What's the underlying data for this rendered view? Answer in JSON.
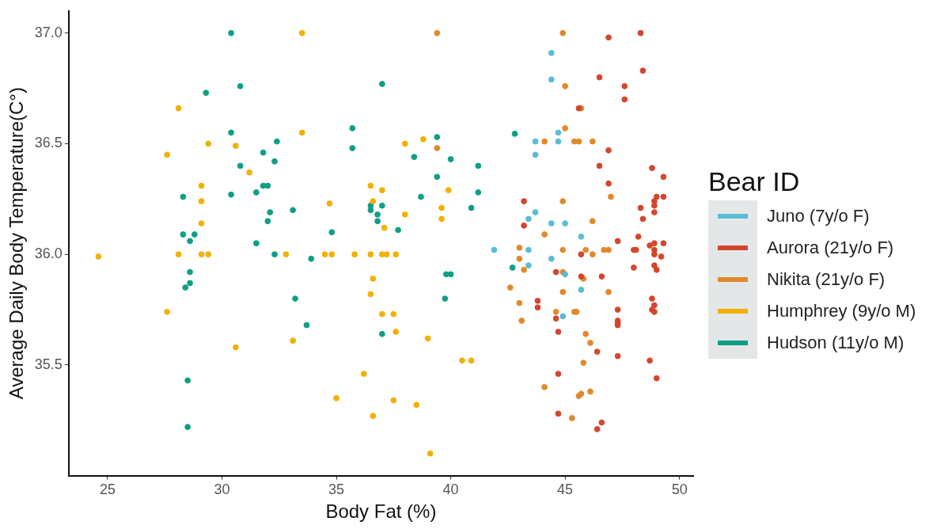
{
  "chart_data": {
    "type": "scatter",
    "xlabel": "Body Fat (%)",
    "ylabel": "Average Daily Body Temperature(C°)",
    "legend_title": "Bear ID",
    "legend": "right",
    "grid": false,
    "marker": "circle",
    "xlim": [
      23.3,
      50.6
    ],
    "xticks": [
      25,
      30,
      35,
      40,
      45,
      50
    ],
    "ylim": [
      35.0,
      37.1
    ],
    "yticks": [
      {
        "value": 35.5,
        "label": "35.5"
      },
      {
        "value": 36,
        "label": "36.0"
      },
      {
        "value": 36.5,
        "label": "36.5"
      },
      {
        "value": 37,
        "label": "37.0"
      }
    ],
    "series": [
      {
        "name": "Juno (7y/o F)",
        "color": "#5bbcd6",
        "x": [
          44.4,
          44.4,
          44.7,
          43.7,
          44.7,
          43.7,
          43.7,
          43.4,
          44.4,
          45.0,
          45.7,
          41.9,
          43.4,
          44.4,
          43.4,
          45.0,
          45.7,
          44.9
        ],
        "values": [
          36.91,
          36.79,
          36.55,
          36.51,
          36.51,
          36.45,
          36.19,
          36.16,
          36.14,
          36.14,
          36.08,
          36.02,
          36.02,
          35.98,
          35.95,
          35.91,
          35.84,
          35.72
        ]
      },
      {
        "name": "Aurora (21y/o F)",
        "color": "#d4462e",
        "x": [
          45.6,
          43.2,
          43.2,
          44.6,
          43.8,
          43.8,
          44.6,
          44.7,
          44.7,
          44.7,
          46.9,
          48.3,
          48.4,
          46.5,
          47.6,
          47.6,
          46.9,
          46.5,
          46.9,
          48.8,
          49.3,
          48.3,
          48.4,
          48.9,
          48.9,
          49.0,
          49.3,
          48.9,
          48.2,
          47.3,
          48.0,
          48.1,
          48.7,
          48.9,
          49.3,
          48.9,
          48.9,
          49.2,
          48.0,
          48.9,
          49.0,
          45.7,
          45.7,
          46.6,
          48.8,
          48.9,
          48.8,
          48.9,
          47.3,
          47.3,
          47.3,
          47.3,
          46.4,
          47.3,
          48.7,
          49.0,
          46.6,
          46.4
        ],
        "values": [
          36.66,
          36.24,
          36.13,
          35.92,
          35.79,
          35.76,
          35.71,
          35.65,
          35.46,
          35.28,
          36.98,
          37.0,
          36.83,
          36.8,
          36.76,
          36.7,
          36.47,
          36.4,
          36.32,
          36.39,
          36.35,
          36.21,
          36.16,
          36.24,
          36.22,
          36.26,
          36.26,
          36.19,
          36.08,
          36.06,
          36.02,
          36.02,
          36.04,
          36.05,
          36.05,
          36.02,
          36.0,
          35.99,
          35.94,
          35.95,
          35.93,
          36.0,
          35.9,
          35.9,
          35.8,
          35.77,
          35.75,
          35.74,
          35.75,
          35.7,
          35.69,
          35.68,
          35.56,
          35.54,
          35.52,
          35.44,
          35.24,
          35.21
        ]
      },
      {
        "name": "Nikita (21y/o F)",
        "color": "#e08a2a",
        "x": [
          39.4,
          39.4,
          44.9,
          45.0,
          45.0,
          44.1,
          45.4,
          44.9,
          44.1,
          43.0,
          43.0,
          43.2,
          44.9,
          44.9,
          42.6,
          43.0,
          44.9,
          43.1,
          44.6,
          45.4,
          44.1,
          45.6,
          45.3,
          45.7,
          45.6,
          46.2,
          47.0,
          46.2,
          45.9,
          46.2,
          46.7,
          46.9,
          45.8,
          46.9,
          45.5,
          45.9,
          46.1,
          45.8,
          45.7,
          46.1
        ],
        "values": [
          37.0,
          36.48,
          37.0,
          36.76,
          36.57,
          36.51,
          36.51,
          36.24,
          36.09,
          36.03,
          35.98,
          35.93,
          36.02,
          35.92,
          35.85,
          35.78,
          35.83,
          35.7,
          35.74,
          35.74,
          35.4,
          35.36,
          35.26,
          36.66,
          36.51,
          36.51,
          36.26,
          36.15,
          36.02,
          36.0,
          36.02,
          36.02,
          35.89,
          35.83,
          35.74,
          35.64,
          35.6,
          35.51,
          35.37,
          35.38
        ]
      },
      {
        "name": "Humphrey (9y/o M)",
        "color": "#f2b100",
        "x": [
          24.6,
          28.1,
          27.6,
          29.4,
          30.6,
          31.2,
          29.1,
          29.1,
          29.1,
          28.1,
          29.1,
          29.4,
          27.6,
          30.6,
          33.5,
          33.5,
          34.7,
          36.5,
          37.0,
          36.6,
          37.1,
          38.0,
          38.0,
          38.8,
          32.8,
          34.5,
          34.8,
          35.8,
          36.5,
          37.0,
          37.2,
          37.6,
          36.6,
          36.5,
          37.0,
          37.5,
          37.6,
          33.1,
          39.0,
          36.2,
          35.0,
          37.5,
          38.5,
          36.6,
          39.1,
          39.9,
          39.6,
          39.6,
          40.5,
          40.9
        ],
        "values": [
          35.99,
          36.66,
          36.45,
          36.5,
          36.49,
          36.37,
          36.31,
          36.24,
          36.14,
          36.0,
          36.0,
          36.0,
          35.74,
          35.58,
          37.0,
          36.55,
          36.23,
          36.31,
          36.29,
          36.24,
          36.12,
          36.18,
          36.5,
          36.52,
          36.0,
          36.0,
          36.0,
          36.0,
          36.0,
          36.0,
          36.0,
          36.0,
          35.89,
          35.82,
          35.73,
          35.73,
          35.65,
          35.61,
          35.62,
          35.46,
          35.35,
          35.34,
          35.32,
          35.27,
          35.1,
          36.29,
          36.21,
          36.16,
          35.52,
          35.52
        ]
      },
      {
        "name": "Hudson (11y/o M)",
        "color": "#0f9f87",
        "x": [
          30.4,
          30.8,
          29.3,
          30.4,
          30.8,
          28.3,
          30.4,
          28.3,
          28.8,
          28.6,
          28.6,
          28.6,
          28.4,
          28.5,
          28.5,
          37.0,
          35.7,
          35.7,
          32.4,
          31.8,
          32.3,
          31.8,
          32.0,
          31.5,
          32.1,
          32.0,
          33.1,
          31.5,
          32.3,
          33.9,
          33.2,
          33.7,
          34.8,
          36.5,
          36.5,
          37.0,
          36.8,
          36.8,
          37.7,
          37.0,
          38.4,
          38.7,
          39.4,
          40.0,
          41.2,
          39.4,
          41.2,
          40.9,
          39.8,
          40.0,
          39.75,
          42.8,
          42.7
        ],
        "values": [
          37.0,
          36.76,
          36.73,
          36.55,
          36.4,
          36.26,
          36.27,
          36.09,
          36.09,
          36.06,
          35.92,
          35.87,
          35.85,
          35.43,
          35.22,
          36.77,
          36.57,
          36.48,
          36.51,
          36.46,
          36.42,
          36.31,
          36.31,
          36.28,
          36.19,
          36.15,
          36.2,
          36.05,
          36.0,
          35.98,
          35.8,
          35.68,
          36.1,
          36.22,
          36.2,
          36.22,
          36.18,
          36.15,
          36.11,
          35.64,
          36.44,
          36.26,
          36.53,
          36.43,
          36.4,
          36.35,
          36.28,
          36.21,
          35.91,
          35.91,
          35.8,
          36.545,
          35.94
        ]
      }
    ]
  }
}
